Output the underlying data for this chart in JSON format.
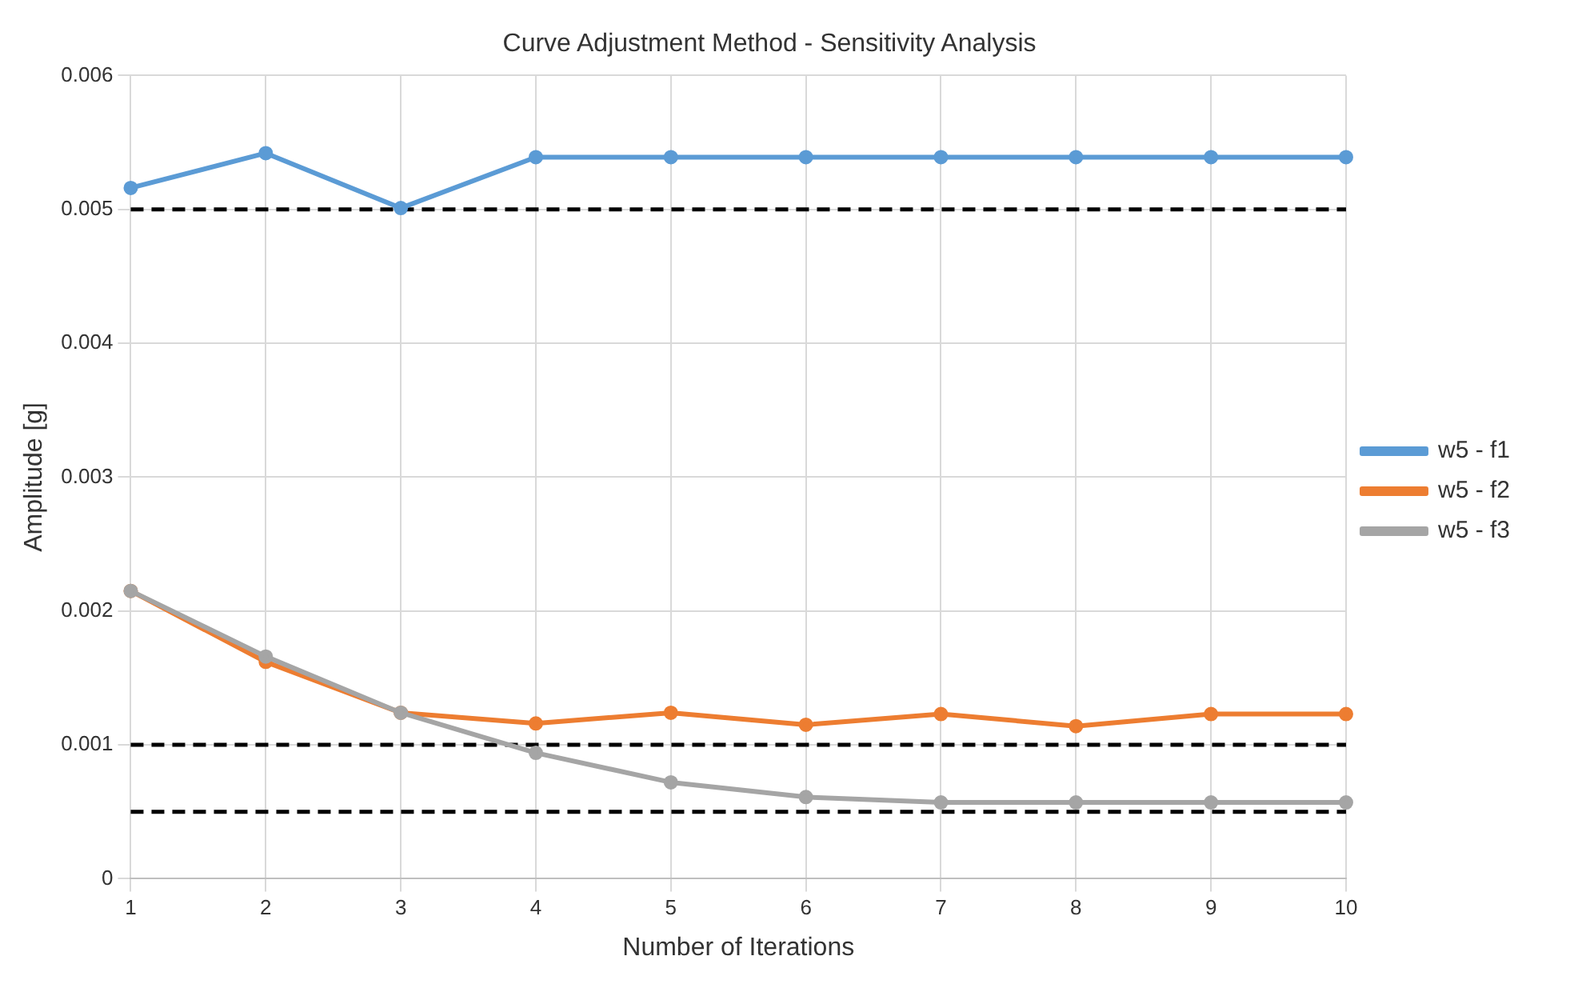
{
  "chart_data": {
    "type": "line",
    "title": "Curve Adjustment Method - Sensitivity Analysis",
    "xlabel": "Number of Iterations",
    "ylabel": "Amplitude [g]",
    "categories": [
      "1",
      "2",
      "3",
      "4",
      "5",
      "6",
      "7",
      "8",
      "9",
      "10"
    ],
    "series": [
      {
        "name": "w5 - f1",
        "color": "#5b9bd5",
        "values": [
          0.00516,
          0.00542,
          0.00501,
          0.00539,
          0.00539,
          0.00539,
          0.00539,
          0.00539,
          0.00539,
          0.00539
        ]
      },
      {
        "name": "w5 - f2",
        "color": "#ed7d31",
        "values": [
          0.00215,
          0.00162,
          0.00124,
          0.00116,
          0.00124,
          0.00115,
          0.00123,
          0.00114,
          0.00123,
          0.00123
        ]
      },
      {
        "name": "w5 - f3",
        "color": "#a5a5a5",
        "values": [
          0.00215,
          0.00166,
          0.00124,
          0.00094,
          0.00072,
          0.00061,
          0.00057,
          0.00057,
          0.00057,
          0.00057
        ]
      }
    ],
    "ylim": [
      0,
      0.006
    ],
    "yticks": [
      0,
      0.001,
      0.002,
      0.003,
      0.004,
      0.005,
      0.006
    ],
    "ref_lines": [
      {
        "axis": "y",
        "value": 0.005,
        "color": "#000000",
        "line_style": "dashed"
      },
      {
        "axis": "y",
        "value": 0.001,
        "color": "#000000",
        "line_style": "dashed"
      },
      {
        "axis": "y",
        "value": 0.0005,
        "color": "#000000",
        "line_style": "dashed"
      }
    ],
    "grid": true,
    "legend": "right",
    "marker": "circle",
    "line_style": "solid"
  }
}
